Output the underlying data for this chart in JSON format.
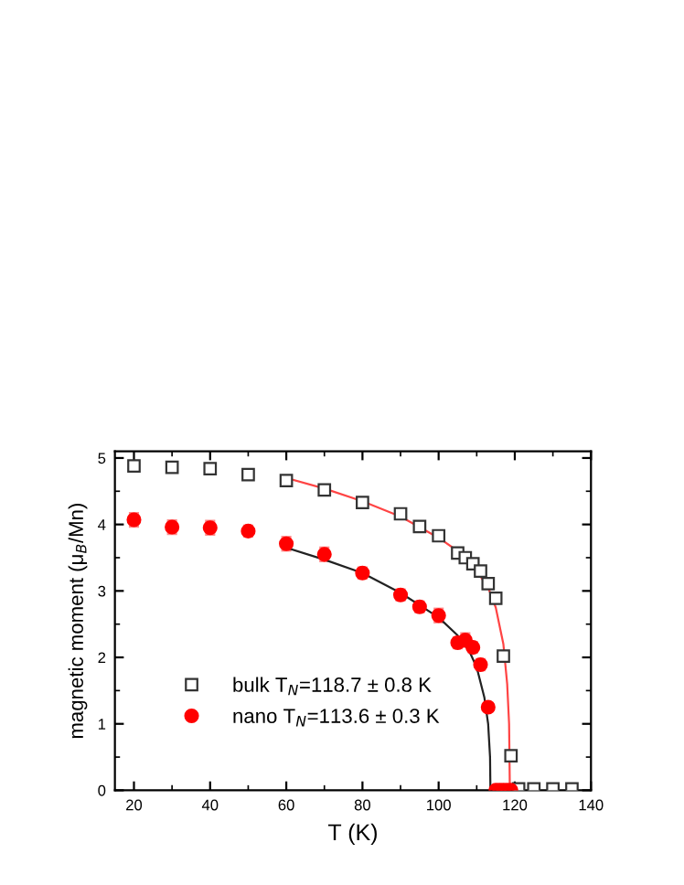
{
  "chart_data": {
    "type": "scatter",
    "xlabel": "T (K)",
    "ylabel": "magnetic moment (μ$_{B}$/Mn)",
    "xlim": [
      15,
      140
    ],
    "ylim": [
      0,
      5.1
    ],
    "xticks": [
      20,
      40,
      60,
      80,
      100,
      120,
      140
    ],
    "yticks": [
      0,
      1,
      2,
      3,
      4,
      5
    ],
    "grid": false,
    "legend": "left",
    "series": [
      {
        "name": "bulk T$_{N}$=118.7 ± 0.8 K",
        "marker": "square",
        "color": "#333333",
        "x": [
          20,
          30,
          40,
          50,
          60,
          70,
          80,
          90,
          95,
          100,
          105,
          107,
          109,
          111,
          113,
          115,
          117,
          119,
          121,
          125,
          130,
          135
        ],
        "values": [
          4.88,
          4.86,
          4.84,
          4.75,
          4.66,
          4.52,
          4.33,
          4.16,
          3.97,
          3.83,
          3.57,
          3.5,
          3.41,
          3.3,
          3.11,
          2.89,
          2.02,
          0.52,
          0.02,
          0.02,
          0.02,
          0.02
        ]
      },
      {
        "name": "nano T$_{N}$=113.6 ± 0.3 K",
        "marker": "circle",
        "color": "#ff0000",
        "x": [
          20,
          30,
          40,
          50,
          60,
          70,
          80,
          90,
          95,
          100,
          105,
          107,
          109,
          111,
          113,
          115,
          116,
          117,
          118,
          119
        ],
        "values": [
          4.07,
          3.96,
          3.95,
          3.9,
          3.71,
          3.55,
          3.27,
          2.94,
          2.76,
          2.63,
          2.22,
          2.26,
          2.15,
          1.89,
          1.25,
          0,
          0,
          0,
          0,
          0
        ],
        "errors": [
          0.1,
          0.1,
          0.1,
          0.08,
          0.1,
          0.1,
          0.08,
          0.08,
          0.08,
          0.1,
          0.08,
          0.1,
          0.08,
          0.08,
          0.05,
          null,
          null,
          null,
          null,
          null
        ]
      },
      {
        "type": "line",
        "color": "#ff4444",
        "x": [
          60,
          70,
          80,
          90,
          100,
          105,
          110,
          113,
          115,
          117,
          118,
          118.5,
          118.7,
          121
        ],
        "values": [
          4.7,
          4.54,
          4.35,
          4.12,
          3.8,
          3.6,
          3.3,
          3.05,
          2.75,
          2.2,
          1.6,
          1.0,
          0,
          0
        ]
      },
      {
        "type": "line",
        "color": "#222222",
        "x": [
          60,
          70,
          80,
          90,
          100,
          105,
          108,
          110,
          112,
          113,
          113.5,
          113.6
        ],
        "values": [
          3.65,
          3.47,
          3.27,
          2.97,
          2.6,
          2.33,
          2.1,
          1.85,
          1.4,
          1.0,
          0.5,
          0
        ]
      }
    ]
  }
}
